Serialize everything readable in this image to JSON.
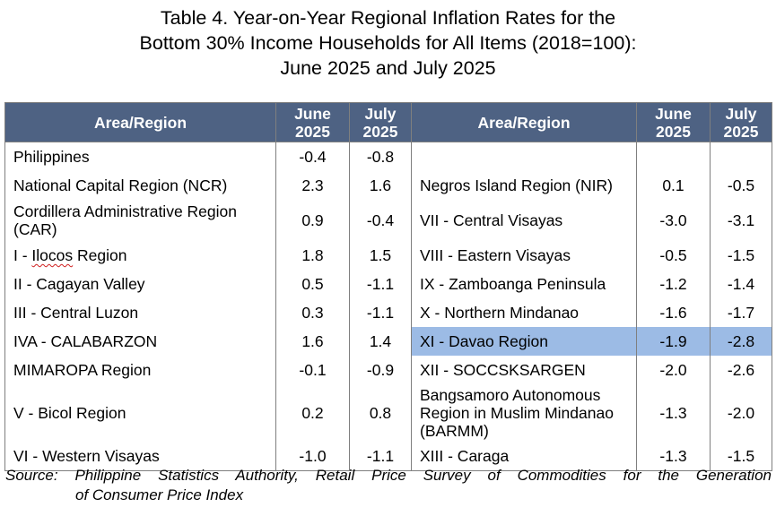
{
  "title": {
    "line1": "Table 4. Year-on-Year Regional Inflation Rates for the",
    "line2": "Bottom 30% Income Households for All Items (2018=100):",
    "line3": "June 2025 and July 2025"
  },
  "headers": {
    "area_region": "Area/Region",
    "june_line1": "June",
    "june_line2": "2025",
    "july_line1": "July",
    "july_line2": "2025"
  },
  "rows": [
    {
      "left": {
        "region": "Philippines",
        "june": "-0.4",
        "july": "-0.8"
      },
      "right": {
        "region": "",
        "june": "",
        "july": ""
      }
    },
    {
      "left": {
        "region": "National Capital Region (NCR)",
        "june": "2.3",
        "july": "1.6"
      },
      "right": {
        "region": "Negros Island Region (NIR)",
        "june": "0.1",
        "july": "-0.5"
      }
    },
    {
      "left": {
        "region_line1": "Cordillera Administrative Region",
        "region_line2": "(CAR)",
        "june": "0.9",
        "july": "-0.4"
      },
      "right": {
        "region": "VII - Central Visayas",
        "june": "-3.0",
        "july": "-3.1"
      }
    },
    {
      "left": {
        "region_prefix": "I - ",
        "region_ul": "Ilocos",
        "region_suffix": " Region",
        "june": "1.8",
        "july": "1.5"
      },
      "right": {
        "region": "VIII - Eastern Visayas",
        "june": "-0.5",
        "july": "-1.5"
      }
    },
    {
      "left": {
        "region": "II - Cagayan Valley",
        "june": "0.5",
        "july": "-1.1"
      },
      "right": {
        "region": "IX - Zamboanga Peninsula",
        "june": "-1.2",
        "july": "-1.4"
      }
    },
    {
      "left": {
        "region": "III - Central Luzon",
        "june": "0.3",
        "july": "-1.1"
      },
      "right": {
        "region": "X - Northern Mindanao",
        "june": "-1.6",
        "july": "-1.7"
      }
    },
    {
      "left": {
        "region": "IVA - CALABARZON",
        "june": "1.6",
        "july": "1.4"
      },
      "right": {
        "region": "XI - Davao Region",
        "june": "-1.9",
        "july": "-2.8"
      }
    },
    {
      "left": {
        "region": "MIMAROPA Region",
        "june": "-0.1",
        "july": "-0.9"
      },
      "right": {
        "region": "XII - SOCCSKSARGEN",
        "june": "-2.0",
        "july": "-2.6"
      }
    },
    {
      "left": {
        "region": "V - Bicol Region",
        "june": "0.2",
        "july": "0.8"
      },
      "right": {
        "region_line1": "Bangsamoro Autonomous",
        "region_line2": "Region in Muslim Mindanao",
        "region_line3": "(BARMM)",
        "june": "-1.3",
        "july": "-2.0"
      }
    },
    {
      "left": {
        "region": "VI - Western Visayas",
        "june": "-1.0",
        "july": "-1.1"
      },
      "right": {
        "region": "XIII - Caraga",
        "june": "-1.3",
        "july": "-1.5"
      }
    }
  ],
  "source": {
    "line1": "Source: Philippine Statistics Authority, Retail Price Survey of Commodities for the Generation",
    "line2": "of Consumer Price Index"
  },
  "colors": {
    "header_bg": "#4e6283",
    "highlight_row": "#9cbbe5",
    "border": "#7f7f7f"
  }
}
